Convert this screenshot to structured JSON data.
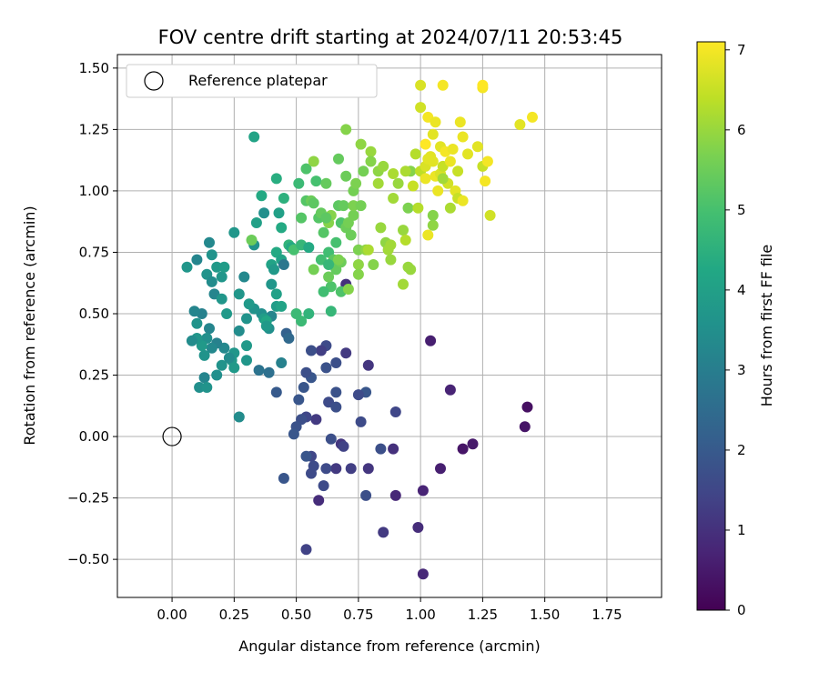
{
  "chart_data": {
    "type": "scatter",
    "title": "FOV centre drift starting at 2024/07/11 20:53:45",
    "xlabel": "Angular distance from reference (arcmin)",
    "ylabel": "Rotation from reference (arcmin)",
    "xlim": [
      -0.22,
      1.97
    ],
    "ylim": [
      -0.655,
      1.555
    ],
    "xticks": [
      0.0,
      0.25,
      0.5,
      0.75,
      1.0,
      1.25,
      1.5,
      1.75
    ],
    "xtick_labels": [
      "0.00",
      "0.25",
      "0.50",
      "0.75",
      "1.00",
      "1.25",
      "1.50",
      "1.75"
    ],
    "yticks": [
      -0.5,
      -0.25,
      0.0,
      0.25,
      0.5,
      0.75,
      1.0,
      1.25,
      1.5
    ],
    "ytick_labels": [
      "−0.50",
      "−0.25",
      "0.00",
      "0.25",
      "0.50",
      "0.75",
      "1.00",
      "1.25",
      "1.50"
    ],
    "grid": true,
    "legend": {
      "position": "top-left",
      "label": "Reference platepar"
    },
    "reference_point": {
      "x": 0.0,
      "y": 0.0,
      "marker": "open-circle"
    },
    "colorbar": {
      "label": "Hours from first FF file",
      "range": [
        0,
        7.1
      ],
      "ticks": [
        0,
        1,
        2,
        3,
        4,
        5,
        6,
        7
      ],
      "tick_labels": [
        "0",
        "1",
        "2",
        "3",
        "4",
        "5",
        "6",
        "7"
      ],
      "colormap": "viridis"
    },
    "points": [
      [
        1.04,
        0.39,
        0.6
      ],
      [
        1.12,
        0.19,
        0.7
      ],
      [
        1.43,
        0.12,
        0.3
      ],
      [
        1.42,
        0.04,
        0.4
      ],
      [
        1.21,
        -0.03,
        0.5
      ],
      [
        1.17,
        -0.05,
        0.4
      ],
      [
        1.08,
        -0.13,
        0.6
      ],
      [
        1.01,
        -0.22,
        0.7
      ],
      [
        0.99,
        -0.37,
        0.9
      ],
      [
        1.01,
        -0.56,
        0.8
      ],
      [
        0.89,
        -0.05,
        1.0
      ],
      [
        0.9,
        0.1,
        1.5
      ],
      [
        0.9,
        -0.24,
        0.8
      ],
      [
        0.85,
        -0.39,
        1.2
      ],
      [
        0.84,
        -0.05,
        1.7
      ],
      [
        0.79,
        -0.13,
        1.1
      ],
      [
        0.78,
        0.18,
        1.9
      ],
      [
        0.78,
        -0.24,
        1.7
      ],
      [
        0.79,
        0.29,
        1.1
      ],
      [
        0.75,
        0.17,
        1.6
      ],
      [
        0.76,
        0.06,
        1.6
      ],
      [
        0.72,
        -0.13,
        1.3
      ],
      [
        0.7,
        0.34,
        1.2
      ],
      [
        0.68,
        -0.03,
        1.1
      ],
      [
        0.69,
        -0.04,
        1.4
      ],
      [
        0.7,
        0.62,
        1.0
      ],
      [
        0.66,
        0.3,
        1.7
      ],
      [
        0.66,
        0.18,
        1.8
      ],
      [
        0.66,
        -0.13,
        1.2
      ],
      [
        0.64,
        -0.01,
        1.7
      ],
      [
        0.62,
        0.37,
        1.6
      ],
      [
        0.62,
        0.28,
        1.8
      ],
      [
        0.63,
        0.14,
        1.6
      ],
      [
        0.62,
        -0.13,
        1.6
      ],
      [
        0.61,
        -0.2,
        1.6
      ],
      [
        0.6,
        0.35,
        1.3
      ],
      [
        0.58,
        0.07,
        1.2
      ],
      [
        0.59,
        -0.26,
        0.9
      ],
      [
        0.56,
        0.35,
        1.7
      ],
      [
        0.56,
        0.24,
        1.9
      ],
      [
        0.56,
        -0.08,
        1.5
      ],
      [
        0.56,
        -0.15,
        1.6
      ],
      [
        0.57,
        -0.12,
        1.6
      ],
      [
        0.54,
        0.26,
        1.7
      ],
      [
        0.54,
        0.08,
        1.5
      ],
      [
        0.54,
        -0.08,
        1.9
      ],
      [
        0.54,
        -0.46,
        1.4
      ],
      [
        0.53,
        0.2,
        1.9
      ],
      [
        0.52,
        0.07,
        1.7
      ],
      [
        0.51,
        0.15,
        1.9
      ],
      [
        0.5,
        0.04,
        1.8
      ],
      [
        0.49,
        0.01,
        1.9
      ],
      [
        0.45,
        -0.17,
        1.9
      ],
      [
        0.42,
        0.18,
        2.0
      ],
      [
        0.46,
        0.42,
        2.2
      ],
      [
        0.39,
        0.26,
        2.6
      ],
      [
        0.35,
        0.27,
        2.7
      ],
      [
        0.4,
        0.49,
        3.2
      ],
      [
        0.39,
        0.44,
        3.5
      ],
      [
        0.36,
        0.5,
        3.5
      ],
      [
        0.33,
        0.52,
        3.6
      ],
      [
        0.31,
        0.54,
        3.8
      ],
      [
        0.3,
        0.31,
        3.7
      ],
      [
        0.3,
        0.37,
        3.8
      ],
      [
        0.27,
        0.43,
        3.4
      ],
      [
        0.27,
        0.08,
        3.4
      ],
      [
        0.25,
        0.28,
        3.8
      ],
      [
        0.25,
        0.34,
        3.7
      ],
      [
        0.24,
        0.31,
        3.8
      ],
      [
        0.23,
        0.32,
        3.4
      ],
      [
        0.2,
        0.29,
        3.6
      ],
      [
        0.18,
        0.25,
        3.5
      ],
      [
        0.21,
        0.36,
        3.3
      ],
      [
        0.18,
        0.38,
        3.1
      ],
      [
        0.16,
        0.36,
        3.3
      ],
      [
        0.15,
        0.44,
        3.2
      ],
      [
        0.14,
        0.4,
        3.5
      ],
      [
        0.13,
        0.33,
        3.6
      ],
      [
        0.12,
        0.37,
        3.8
      ],
      [
        0.13,
        0.24,
        3.2
      ],
      [
        0.11,
        0.2,
        3.5
      ],
      [
        0.14,
        0.2,
        3.6
      ],
      [
        0.12,
        0.5,
        3.1
      ],
      [
        0.09,
        0.51,
        3.2
      ],
      [
        0.1,
        0.46,
        3.6
      ],
      [
        0.1,
        0.4,
        3.7
      ],
      [
        0.08,
        0.39,
        3.4
      ],
      [
        0.06,
        0.69,
        3.7
      ],
      [
        0.1,
        0.72,
        3.2
      ],
      [
        0.14,
        0.66,
        3.6
      ],
      [
        0.16,
        0.63,
        3.4
      ],
      [
        0.17,
        0.58,
        3.2
      ],
      [
        0.15,
        0.79,
        3.3
      ],
      [
        0.16,
        0.74,
        3.6
      ],
      [
        0.18,
        0.69,
        3.8
      ],
      [
        0.2,
        0.65,
        3.7
      ],
      [
        0.21,
        0.69,
        3.9
      ],
      [
        0.2,
        0.56,
        3.7
      ],
      [
        0.22,
        0.5,
        3.8
      ],
      [
        0.25,
        0.83,
        3.7
      ],
      [
        0.27,
        0.58,
        3.7
      ],
      [
        0.29,
        0.65,
        3.3
      ],
      [
        0.3,
        0.48,
        3.6
      ],
      [
        0.33,
        0.78,
        3.6
      ],
      [
        0.34,
        0.87,
        4.0
      ],
      [
        0.36,
        0.98,
        4.3
      ],
      [
        0.37,
        0.91,
        3.5
      ],
      [
        0.37,
        0.48,
        3.9
      ],
      [
        0.38,
        0.47,
        4.2
      ],
      [
        0.38,
        0.45,
        3.8
      ],
      [
        0.4,
        0.62,
        3.7
      ],
      [
        0.4,
        0.7,
        4.1
      ],
      [
        0.41,
        0.68,
        3.8
      ],
      [
        0.42,
        0.75,
        4.3
      ],
      [
        0.42,
        1.05,
        4.4
      ],
      [
        0.42,
        0.58,
        4.0
      ],
      [
        0.42,
        0.53,
        3.9
      ],
      [
        0.43,
        0.91,
        4.0
      ],
      [
        0.44,
        0.53,
        4.1
      ],
      [
        0.44,
        0.72,
        4.1
      ],
      [
        0.45,
        0.7,
        2.8
      ],
      [
        0.44,
        0.85,
        4.3
      ],
      [
        0.45,
        0.97,
        4.5
      ],
      [
        0.47,
        0.78,
        4.6
      ],
      [
        0.48,
        0.77,
        4.3
      ],
      [
        0.49,
        0.76,
        5.0
      ],
      [
        0.5,
        0.5,
        4.8
      ],
      [
        0.52,
        0.89,
        5.2
      ],
      [
        0.52,
        0.78,
        4.7
      ],
      [
        0.52,
        0.47,
        4.8
      ],
      [
        0.51,
        1.03,
        4.8
      ],
      [
        0.54,
        0.96,
        5.2
      ],
      [
        0.54,
        1.09,
        5.1
      ],
      [
        0.55,
        0.5,
        4.6
      ],
      [
        0.55,
        0.77,
        4.3
      ],
      [
        0.56,
        0.96,
        5.5
      ],
      [
        0.57,
        1.12,
        5.9
      ],
      [
        0.57,
        0.95,
        5.3
      ],
      [
        0.58,
        1.04,
        5.0
      ],
      [
        0.59,
        0.89,
        5.2
      ],
      [
        0.6,
        0.91,
        5.4
      ],
      [
        0.61,
        0.83,
        5.2
      ],
      [
        0.62,
        1.03,
        5.4
      ],
      [
        0.63,
        0.87,
        5.8
      ],
      [
        0.64,
        0.9,
        5.8
      ],
      [
        0.63,
        0.75,
        4.9
      ],
      [
        0.64,
        0.51,
        4.7
      ],
      [
        0.64,
        0.61,
        5.1
      ],
      [
        0.65,
        0.72,
        5.3
      ],
      [
        0.66,
        0.68,
        5.4
      ],
      [
        0.66,
        0.79,
        5.0
      ],
      [
        0.67,
        0.94,
        5.3
      ],
      [
        0.67,
        1.13,
        5.4
      ],
      [
        0.68,
        0.87,
        5.1
      ],
      [
        0.68,
        0.71,
        5.5
      ],
      [
        0.68,
        0.59,
        5.1
      ],
      [
        0.69,
        0.94,
        5.4
      ],
      [
        0.7,
        1.25,
        5.8
      ],
      [
        0.7,
        0.85,
        5.5
      ],
      [
        0.7,
        1.06,
        5.5
      ],
      [
        0.71,
        0.87,
        5.6
      ],
      [
        0.71,
        0.6,
        5.8
      ],
      [
        0.72,
        0.82,
        5.5
      ],
      [
        0.73,
        0.9,
        5.6
      ],
      [
        0.73,
        0.94,
        5.7
      ],
      [
        0.73,
        1.0,
        5.6
      ],
      [
        0.74,
        1.03,
        5.7
      ],
      [
        0.75,
        0.76,
        5.7
      ],
      [
        0.75,
        0.7,
        5.9
      ],
      [
        0.75,
        0.66,
        5.8
      ],
      [
        0.76,
        0.94,
        5.6
      ],
      [
        0.76,
        1.19,
        5.9
      ],
      [
        0.77,
        1.08,
        5.6
      ],
      [
        0.78,
        0.76,
        5.9
      ],
      [
        0.79,
        0.76,
        6.2
      ],
      [
        0.8,
        1.16,
        6.0
      ],
      [
        0.8,
        1.12,
        5.8
      ],
      [
        0.81,
        0.7,
        5.8
      ],
      [
        0.83,
        1.08,
        5.9
      ],
      [
        0.83,
        1.03,
        6.1
      ],
      [
        0.84,
        0.85,
        6.0
      ],
      [
        0.85,
        1.1,
        6.0
      ],
      [
        0.86,
        0.79,
        5.9
      ],
      [
        0.87,
        0.76,
        6.1
      ],
      [
        0.88,
        0.72,
        6.0
      ],
      [
        0.88,
        0.78,
        6.1
      ],
      [
        0.89,
        0.97,
        6.1
      ],
      [
        0.89,
        1.07,
        6.2
      ],
      [
        0.91,
        1.03,
        6.0
      ],
      [
        0.93,
        0.62,
        6.1
      ],
      [
        0.93,
        0.84,
        6.0
      ],
      [
        0.94,
        0.8,
        6.3
      ],
      [
        0.95,
        0.69,
        6.0
      ],
      [
        0.95,
        0.93,
        5.7
      ],
      [
        0.96,
        0.68,
        6.0
      ],
      [
        0.96,
        1.08,
        5.8
      ],
      [
        0.97,
        1.02,
        6.5
      ],
      [
        0.99,
        0.93,
        6.3
      ],
      [
        1.0,
        1.08,
        6.4
      ],
      [
        1.0,
        1.43,
        6.7
      ],
      [
        1.0,
        1.34,
        6.6
      ],
      [
        1.02,
        1.1,
        6.7
      ],
      [
        1.02,
        1.05,
        6.9
      ],
      [
        1.02,
        1.19,
        7.1
      ],
      [
        1.03,
        1.3,
        7.0
      ],
      [
        1.03,
        0.82,
        6.9
      ],
      [
        1.04,
        1.14,
        6.8
      ],
      [
        1.05,
        0.86,
        5.9
      ],
      [
        1.05,
        0.9,
        5.8
      ],
      [
        1.05,
        1.23,
        6.8
      ],
      [
        1.05,
        1.12,
        6.8
      ],
      [
        1.06,
        1.06,
        6.9
      ],
      [
        1.07,
        1.0,
        6.9
      ],
      [
        1.08,
        1.18,
        6.8
      ],
      [
        1.08,
        1.07,
        6.7
      ],
      [
        1.09,
        1.43,
        7.0
      ],
      [
        1.09,
        1.1,
        6.5
      ],
      [
        1.1,
        1.16,
        7.0
      ],
      [
        1.11,
        1.03,
        6.6
      ],
      [
        1.12,
        0.93,
        6.2
      ],
      [
        1.12,
        1.12,
        6.9
      ],
      [
        1.13,
        1.17,
        6.9
      ],
      [
        1.14,
        1.0,
        6.8
      ],
      [
        1.15,
        1.08,
        6.5
      ],
      [
        1.15,
        0.97,
        6.5
      ],
      [
        1.16,
        1.28,
        6.9
      ],
      [
        1.17,
        0.96,
        6.9
      ],
      [
        1.17,
        1.22,
        6.9
      ],
      [
        1.19,
        1.15,
        6.8
      ],
      [
        1.23,
        1.18,
        6.8
      ],
      [
        1.25,
        1.42,
        7.0
      ],
      [
        1.25,
        1.43,
        7.1
      ],
      [
        1.25,
        1.1,
        6.5
      ],
      [
        1.26,
        1.04,
        7.0
      ],
      [
        1.27,
        1.12,
        7.0
      ],
      [
        1.28,
        0.9,
        6.6
      ],
      [
        1.4,
        1.27,
        6.8
      ],
      [
        1.45,
        1.3,
        7.0
      ],
      [
        0.94,
        1.08,
        6.2
      ],
      [
        1.03,
        1.13,
        6.8
      ],
      [
        1.06,
        1.28,
        6.9
      ],
      [
        0.98,
        1.15,
        6.3
      ],
      [
        1.09,
        1.05,
        6.1
      ],
      [
        0.33,
        1.22,
        4.1
      ],
      [
        0.32,
        0.8,
        5.5
      ],
      [
        0.47,
        0.4,
        2.4
      ],
      [
        0.66,
        0.12,
        1.7
      ],
      [
        0.44,
        0.3,
        3.1
      ],
      [
        0.6,
        0.72,
        4.9
      ],
      [
        0.57,
        0.68,
        5.6
      ],
      [
        0.61,
        0.59,
        4.9
      ],
      [
        0.63,
        0.65,
        5.5
      ],
      [
        0.62,
        0.89,
        5.3
      ],
      [
        0.63,
        0.7,
        4.7
      ],
      [
        0.67,
        0.72,
        5.7
      ]
    ]
  }
}
